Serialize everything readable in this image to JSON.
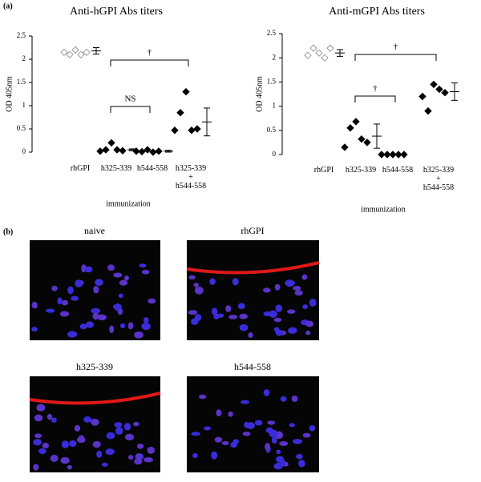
{
  "panel_a_label": "(a)",
  "panel_b_label": "(b)",
  "chart_data": [
    {
      "type": "dot",
      "title": "Anti-hGPI Abs titers",
      "ylabel": "OD 405nm",
      "xlabel": "immunization",
      "categories": [
        "rhGPI",
        "h325-339",
        "h544-558",
        "h325-339\n+\nh544-558"
      ],
      "marker_fill": [
        "open",
        "filled",
        "filled",
        "filled"
      ],
      "points": [
        [
          2.15,
          2.1,
          2.2,
          2.1,
          2.15
        ],
        [
          0.02,
          0.05,
          0.2,
          0.05,
          0.03
        ],
        [
          0.02,
          0.01,
          0.05,
          0.0,
          0.02
        ],
        [
          0.47,
          0.85,
          1.3,
          0.47,
          0.5
        ]
      ],
      "mean": [
        2.18,
        0.05,
        0.02,
        0.65
      ],
      "error": [
        0.07,
        0.02,
        0.02,
        0.3
      ],
      "ylim": [
        0,
        2.5
      ],
      "yticks": [
        0,
        0.5,
        1,
        1.5,
        2,
        2.5
      ],
      "brackets": [
        {
          "label": "†",
          "between": [
            1,
            3
          ]
        },
        {
          "label": "NS",
          "between": [
            1,
            2
          ]
        }
      ]
    },
    {
      "type": "dot",
      "title": "Anti-mGPI Abs titers",
      "ylabel": "OD 405nm",
      "xlabel": "immunization",
      "categories": [
        "rhGPI",
        "h325-339",
        "h544-558",
        "h325-339\n+\nh544-558"
      ],
      "marker_fill": [
        "open",
        "filled",
        "filled",
        "filled"
      ],
      "points": [
        [
          2.05,
          2.2,
          2.1,
          2.0,
          2.2
        ],
        [
          0.15,
          0.55,
          0.68,
          0.32,
          0.25
        ],
        [
          0,
          0,
          0,
          0,
          0
        ],
        [
          1.2,
          0.9,
          1.45,
          1.35,
          1.28
        ]
      ],
      "mean": [
        2.1,
        0.38,
        null,
        1.3
      ],
      "error": [
        0.07,
        0.25,
        null,
        0.18
      ],
      "ylim": [
        0,
        2.5
      ],
      "yticks": [
        0,
        0.5,
        1,
        1.5,
        2,
        2.5
      ],
      "brackets": [
        {
          "label": "†",
          "between": [
            1,
            3
          ]
        },
        {
          "label": "†",
          "between": [
            1,
            2
          ]
        }
      ]
    }
  ],
  "images": [
    {
      "label": "naive"
    },
    {
      "label": "rhGPI"
    },
    {
      "label": "h325-339"
    },
    {
      "label": "h544-558"
    }
  ]
}
